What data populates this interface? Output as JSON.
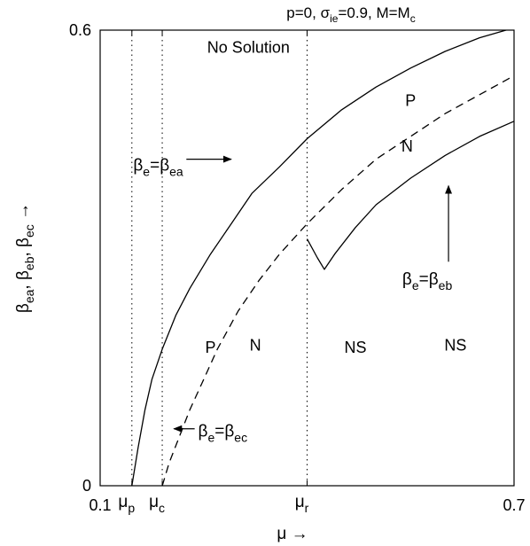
{
  "chart_data": {
    "type": "line",
    "title_parts": {
      "p": "p=0, ",
      "sigma": "σ",
      "sigma_sub": "ie",
      "sigma_val": "=0.9, M=M",
      "m_sub": "c"
    },
    "xlabel": "μ →",
    "ylabel_parts": {
      "b1": "β",
      "s1": "ea",
      "c1": ", ",
      "b2": "β",
      "s2": "eb",
      "c2": ", ",
      "b3": "β",
      "s3": "ec",
      "arrow": " →"
    },
    "xlim": [
      0.1,
      0.7
    ],
    "ylim": [
      0,
      0.6
    ],
    "grid": false,
    "x_ticks": [
      {
        "value": 0.1,
        "label": "0.1"
      },
      {
        "value": 0.7,
        "label": "0.7"
      }
    ],
    "x_greek_ticks": [
      {
        "value": 0.146,
        "base": "μ",
        "sub": "p"
      },
      {
        "value": 0.19,
        "base": "μ",
        "sub": "c"
      },
      {
        "value": 0.4,
        "base": "μ",
        "sub": "r"
      }
    ],
    "y_ticks": [
      {
        "value": 0,
        "label": "0"
      },
      {
        "value": 0.6,
        "label": "0.6"
      }
    ],
    "vlines": [
      0.146,
      0.19,
      0.4
    ],
    "series": [
      {
        "style": "solid",
        "x": [
          0.146,
          0.155,
          0.165,
          0.175,
          0.19,
          0.21,
          0.23,
          0.26,
          0.29,
          0.32,
          0.36,
          0.4,
          0.45,
          0.5,
          0.55,
          0.6,
          0.65,
          0.7
        ],
        "y": [
          0.0,
          0.05,
          0.1,
          0.14,
          0.18,
          0.225,
          0.26,
          0.305,
          0.345,
          0.385,
          0.42,
          0.457,
          0.495,
          0.525,
          0.55,
          0.572,
          0.59,
          0.603
        ]
      },
      {
        "style": "dashed",
        "x": [
          0.19,
          0.2,
          0.215,
          0.23,
          0.25,
          0.27,
          0.3,
          0.33,
          0.36,
          0.4,
          0.45,
          0.5,
          0.55,
          0.6,
          0.65,
          0.7
        ],
        "y": [
          0.0,
          0.03,
          0.065,
          0.1,
          0.14,
          0.18,
          0.23,
          0.27,
          0.305,
          0.345,
          0.39,
          0.43,
          0.46,
          0.49,
          0.515,
          0.54
        ]
      },
      {
        "style": "solid",
        "x": [
          0.4,
          0.415,
          0.425,
          0.44,
          0.47,
          0.5,
          0.55,
          0.6,
          0.65,
          0.7
        ],
        "y": [
          0.325,
          0.3,
          0.285,
          0.305,
          0.34,
          0.37,
          0.405,
          0.435,
          0.46,
          0.48
        ]
      }
    ],
    "region_labels": [
      {
        "text": "No Solution",
        "x": 0.315,
        "y": 0.57
      },
      {
        "text": "P",
        "x": 0.55,
        "y": 0.5
      },
      {
        "text": "N",
        "x": 0.545,
        "y": 0.44
      },
      {
        "text": "P",
        "x": 0.26,
        "y": 0.175
      },
      {
        "text": "N",
        "x": 0.325,
        "y": 0.178
      },
      {
        "text": "NS",
        "x": 0.47,
        "y": 0.175
      },
      {
        "text": "NS",
        "x": 0.615,
        "y": 0.178
      }
    ],
    "annotations": [
      {
        "parts": [
          "β",
          "e",
          "=β",
          "ea"
        ],
        "text_x": 0.148,
        "text_y": 0.415,
        "arrow_from": [
          0.225,
          0.43
        ],
        "arrow_to": [
          0.29,
          0.43
        ]
      },
      {
        "parts": [
          "β",
          "e",
          "=β",
          "eb"
        ],
        "text_x": 0.538,
        "text_y": 0.265,
        "arrow_from": [
          0.605,
          0.295
        ],
        "arrow_to": [
          0.605,
          0.395
        ]
      },
      {
        "parts": [
          "β",
          "e",
          "=β",
          "ec"
        ],
        "text_x": 0.242,
        "text_y": 0.065,
        "arrow_from": [
          0.237,
          0.075
        ],
        "arrow_to": [
          0.207,
          0.075
        ]
      }
    ]
  }
}
